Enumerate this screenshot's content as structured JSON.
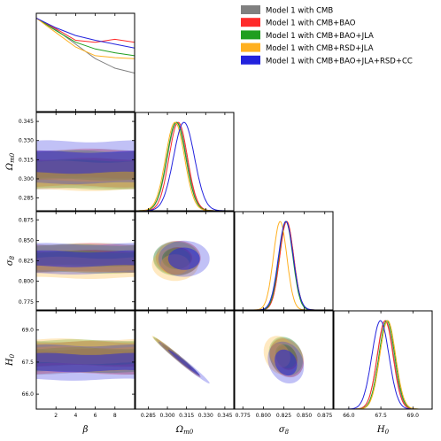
{
  "chart_data": {
    "type": "triangle",
    "parameters": [
      {
        "key": "beta",
        "label": "β",
        "range": [
          0,
          10
        ],
        "ticks": [
          2,
          4,
          6,
          8
        ],
        "tick_labels": [
          "2",
          "4",
          "6",
          "8"
        ]
      },
      {
        "key": "om",
        "label": "Ωm0",
        "range": [
          0.275,
          0.352
        ],
        "ticks": [
          0.285,
          0.3,
          0.315,
          0.33,
          0.345
        ],
        "tick_labels": [
          "0.285",
          "0.300",
          "0.315",
          "0.330",
          "0.345"
        ]
      },
      {
        "key": "s8",
        "label": "σ8",
        "range": [
          0.765,
          0.885
        ],
        "ticks": [
          0.775,
          0.8,
          0.825,
          0.85,
          0.875
        ],
        "tick_labels": [
          "0.775",
          "0.800",
          "0.825",
          "0.850",
          "0.875"
        ]
      },
      {
        "key": "h0",
        "label": "H0",
        "range": [
          65.3,
          69.9
        ],
        "ticks": [
          66.0,
          67.5,
          69.0
        ],
        "tick_labels": [
          "66.0",
          "67.5",
          "69.0"
        ]
      }
    ],
    "legend": {
      "placement": "top-right",
      "entries": [
        {
          "name": "Model 1 with CMB",
          "color": "#808080"
        },
        {
          "name": "Model 1 with CMB+BAO",
          "color": "#ff2b2b"
        },
        {
          "name": "Model 1 with CMB+BAO+JLA",
          "color": "#1f9e1f"
        },
        {
          "name": "Model 1 with CMB+RSD+JLA",
          "color": "#ffb020"
        },
        {
          "name": "Model 1 with CMB+BAO+JLA+RSD+CC",
          "color": "#2222dd"
        }
      ]
    },
    "series": [
      {
        "name": "Model 1 with CMB",
        "beta_1d": [
          [
            0,
            0.97
          ],
          [
            2,
            0.85
          ],
          [
            4,
            0.7
          ],
          [
            6,
            0.55
          ],
          [
            8,
            0.45
          ],
          [
            10,
            0.4
          ]
        ],
        "om": {
          "mean": 0.3075,
          "sigma": 0.0075
        },
        "s8": {
          "mean": 0.8285,
          "sigma": 0.0085
        },
        "h0": {
          "mean": 67.72,
          "sigma": 0.38
        }
      },
      {
        "name": "Model 1 with CMB+BAO",
        "beta_1d": [
          [
            0,
            0.97
          ],
          [
            2,
            0.86
          ],
          [
            4,
            0.74
          ],
          [
            6,
            0.72
          ],
          [
            8,
            0.75
          ],
          [
            10,
            0.72
          ]
        ],
        "om": {
          "mean": 0.3085,
          "sigma": 0.0072
        },
        "s8": {
          "mean": 0.8285,
          "sigma": 0.0085
        },
        "h0": {
          "mean": 67.7,
          "sigma": 0.37
        }
      },
      {
        "name": "Model 1 with CMB+BAO+JLA",
        "beta_1d": [
          [
            0,
            0.97
          ],
          [
            2,
            0.84
          ],
          [
            4,
            0.72
          ],
          [
            6,
            0.65
          ],
          [
            8,
            0.61
          ],
          [
            10,
            0.58
          ]
        ],
        "om": {
          "mean": 0.307,
          "sigma": 0.0074
        },
        "s8": {
          "mean": 0.8275,
          "sigma": 0.0085
        },
        "h0": {
          "mean": 67.78,
          "sigma": 0.37
        }
      },
      {
        "name": "Model 1 with CMB+RSD+JLA",
        "beta_1d": [
          [
            0,
            0.97
          ],
          [
            2,
            0.82
          ],
          [
            4,
            0.67
          ],
          [
            6,
            0.58
          ],
          [
            8,
            0.56
          ],
          [
            10,
            0.55
          ]
        ],
        "om": {
          "mean": 0.306,
          "sigma": 0.0074
        },
        "s8": {
          "mean": 0.8205,
          "sigma": 0.0082
        },
        "h0": {
          "mean": 67.82,
          "sigma": 0.37
        }
      },
      {
        "name": "Model 1 with CMB+BAO+JLA+RSD+CC",
        "beta_1d": [
          [
            0,
            0.97
          ],
          [
            2,
            0.87
          ],
          [
            4,
            0.79
          ],
          [
            6,
            0.74
          ],
          [
            8,
            0.7
          ],
          [
            10,
            0.66
          ]
        ],
        "om": {
          "mean": 0.313,
          "sigma": 0.0082
        },
        "s8": {
          "mean": 0.8275,
          "sigma": 0.009
        },
        "h0": {
          "mean": 67.48,
          "sigma": 0.4
        }
      }
    ]
  }
}
